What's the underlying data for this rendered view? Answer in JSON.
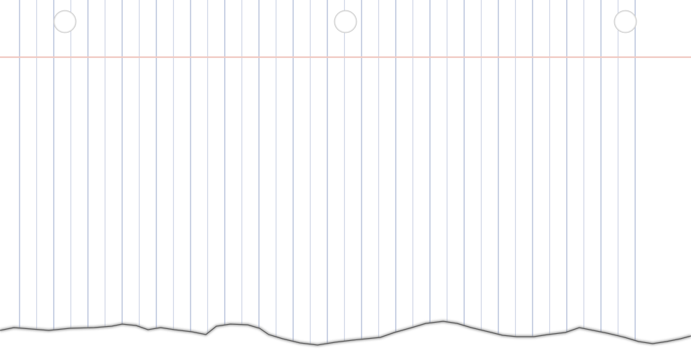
{
  "paper": {
    "kind": "torn-notebook-page",
    "orientation": "rotated-vertical-rules",
    "background_color": "#ffffff",
    "rule_color": "#b9c3dc",
    "margin_line_color": "#f0c9c1",
    "edge_shadow_color": "#7b7b7b",
    "hole_count": 3,
    "rule_count": 37,
    "torn_edge": "bottom"
  }
}
